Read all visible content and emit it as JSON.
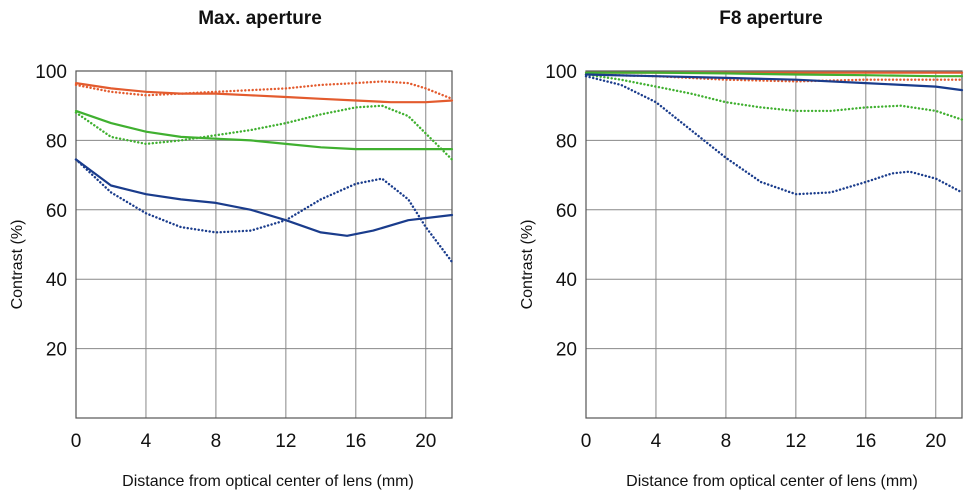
{
  "colors": {
    "red": "#e35b2e",
    "green": "#40b030",
    "blue": "#1a3c8c",
    "grid": "#888888"
  },
  "chart_data": [
    {
      "type": "line",
      "title": "Max. aperture",
      "xlabel": "Distance from optical center of lens (mm)",
      "ylabel": "Contrast (%)",
      "xlim": [
        0,
        21.5
      ],
      "ylim": [
        0,
        100
      ],
      "xticks": [
        0,
        4,
        8,
        12,
        16,
        20
      ],
      "yticks": [
        20,
        40,
        60,
        80,
        100
      ],
      "grid": true,
      "series": [
        {
          "color": "red",
          "style": "solid",
          "x": [
            0,
            2,
            4,
            6,
            8,
            10,
            12,
            14,
            16,
            18,
            20,
            21.5
          ],
          "y": [
            96.5,
            95,
            94,
            93.5,
            93.5,
            93,
            92.5,
            92,
            91.5,
            91,
            91,
            91.5
          ]
        },
        {
          "color": "red",
          "style": "dotted",
          "x": [
            0,
            2,
            4,
            6,
            8,
            10,
            12,
            14,
            16,
            17.5,
            19,
            20,
            21.5
          ],
          "y": [
            96,
            94,
            93,
            93.5,
            94,
            94.5,
            95,
            96,
            96.5,
            97,
            96.5,
            95,
            92
          ]
        },
        {
          "color": "green",
          "style": "solid",
          "x": [
            0,
            2,
            4,
            6,
            8,
            10,
            12,
            14,
            16,
            18,
            20,
            21.5
          ],
          "y": [
            88.5,
            85,
            82.5,
            81,
            80.5,
            80,
            79,
            78,
            77.5,
            77.5,
            77.5,
            77.5
          ]
        },
        {
          "color": "green",
          "style": "dotted",
          "x": [
            0,
            2,
            4,
            6,
            8,
            10,
            12,
            14,
            16,
            17.5,
            19,
            20,
            21.5
          ],
          "y": [
            88,
            81,
            79,
            80,
            81.5,
            83,
            85,
            87.5,
            89.5,
            90,
            87,
            82,
            74.5
          ]
        },
        {
          "color": "blue",
          "style": "solid",
          "x": [
            0,
            2,
            4,
            6,
            8,
            10,
            12,
            14,
            15.5,
            17,
            19,
            21.5
          ],
          "y": [
            74.5,
            67,
            64.5,
            63,
            62,
            60,
            57,
            53.5,
            52.5,
            54,
            57,
            58.5
          ]
        },
        {
          "color": "blue",
          "style": "dotted",
          "x": [
            0,
            2,
            4,
            6,
            8,
            10,
            12,
            14,
            16,
            17.5,
            19,
            20,
            21.5
          ],
          "y": [
            74.5,
            65,
            59,
            55,
            53.5,
            54,
            57,
            63,
            67.5,
            69,
            63,
            55,
            45
          ]
        }
      ]
    },
    {
      "type": "line",
      "title": "F8 aperture",
      "xlabel": "Distance from optical center of lens (mm)",
      "ylabel": "Contrast (%)",
      "xlim": [
        0,
        21.5
      ],
      "ylim": [
        0,
        100
      ],
      "xticks": [
        0,
        4,
        8,
        12,
        16,
        20
      ],
      "yticks": [
        20,
        40,
        60,
        80,
        100
      ],
      "grid": true,
      "series": [
        {
          "color": "red",
          "style": "solid",
          "x": [
            0,
            4,
            8,
            12,
            16,
            20,
            21.5
          ],
          "y": [
            99.5,
            99.5,
            99.5,
            99.5,
            99.5,
            99.5,
            99.5
          ]
        },
        {
          "color": "red",
          "style": "dotted",
          "x": [
            0,
            4,
            8,
            12,
            16,
            20,
            21.5
          ],
          "y": [
            99,
            98.5,
            97.5,
            97,
            97.5,
            97.5,
            97.5
          ]
        },
        {
          "color": "green",
          "style": "solid",
          "x": [
            0,
            4,
            8,
            12,
            16,
            20,
            21.5
          ],
          "y": [
            99.5,
            99.5,
            99.3,
            99,
            98.8,
            98.5,
            98.5
          ]
        },
        {
          "color": "green",
          "style": "dotted",
          "x": [
            0,
            2,
            4,
            6,
            8,
            10,
            12,
            14,
            16,
            18,
            20,
            21.5
          ],
          "y": [
            99,
            97.5,
            95.5,
            93.5,
            91,
            89.5,
            88.5,
            88.5,
            89.5,
            90,
            88.5,
            86
          ]
        },
        {
          "color": "blue",
          "style": "solid",
          "x": [
            0,
            4,
            8,
            12,
            16,
            20,
            21.5
          ],
          "y": [
            99,
            98.5,
            98,
            97.5,
            96.5,
            95.5,
            94.5
          ]
        },
        {
          "color": "blue",
          "style": "dotted",
          "x": [
            0,
            2,
            4,
            6,
            8,
            10,
            12,
            14,
            16,
            17.5,
            18.5,
            20,
            21.5
          ],
          "y": [
            98.5,
            96,
            91,
            83,
            75,
            68,
            64.5,
            65,
            68,
            70.5,
            71,
            69,
            65
          ]
        }
      ]
    }
  ]
}
